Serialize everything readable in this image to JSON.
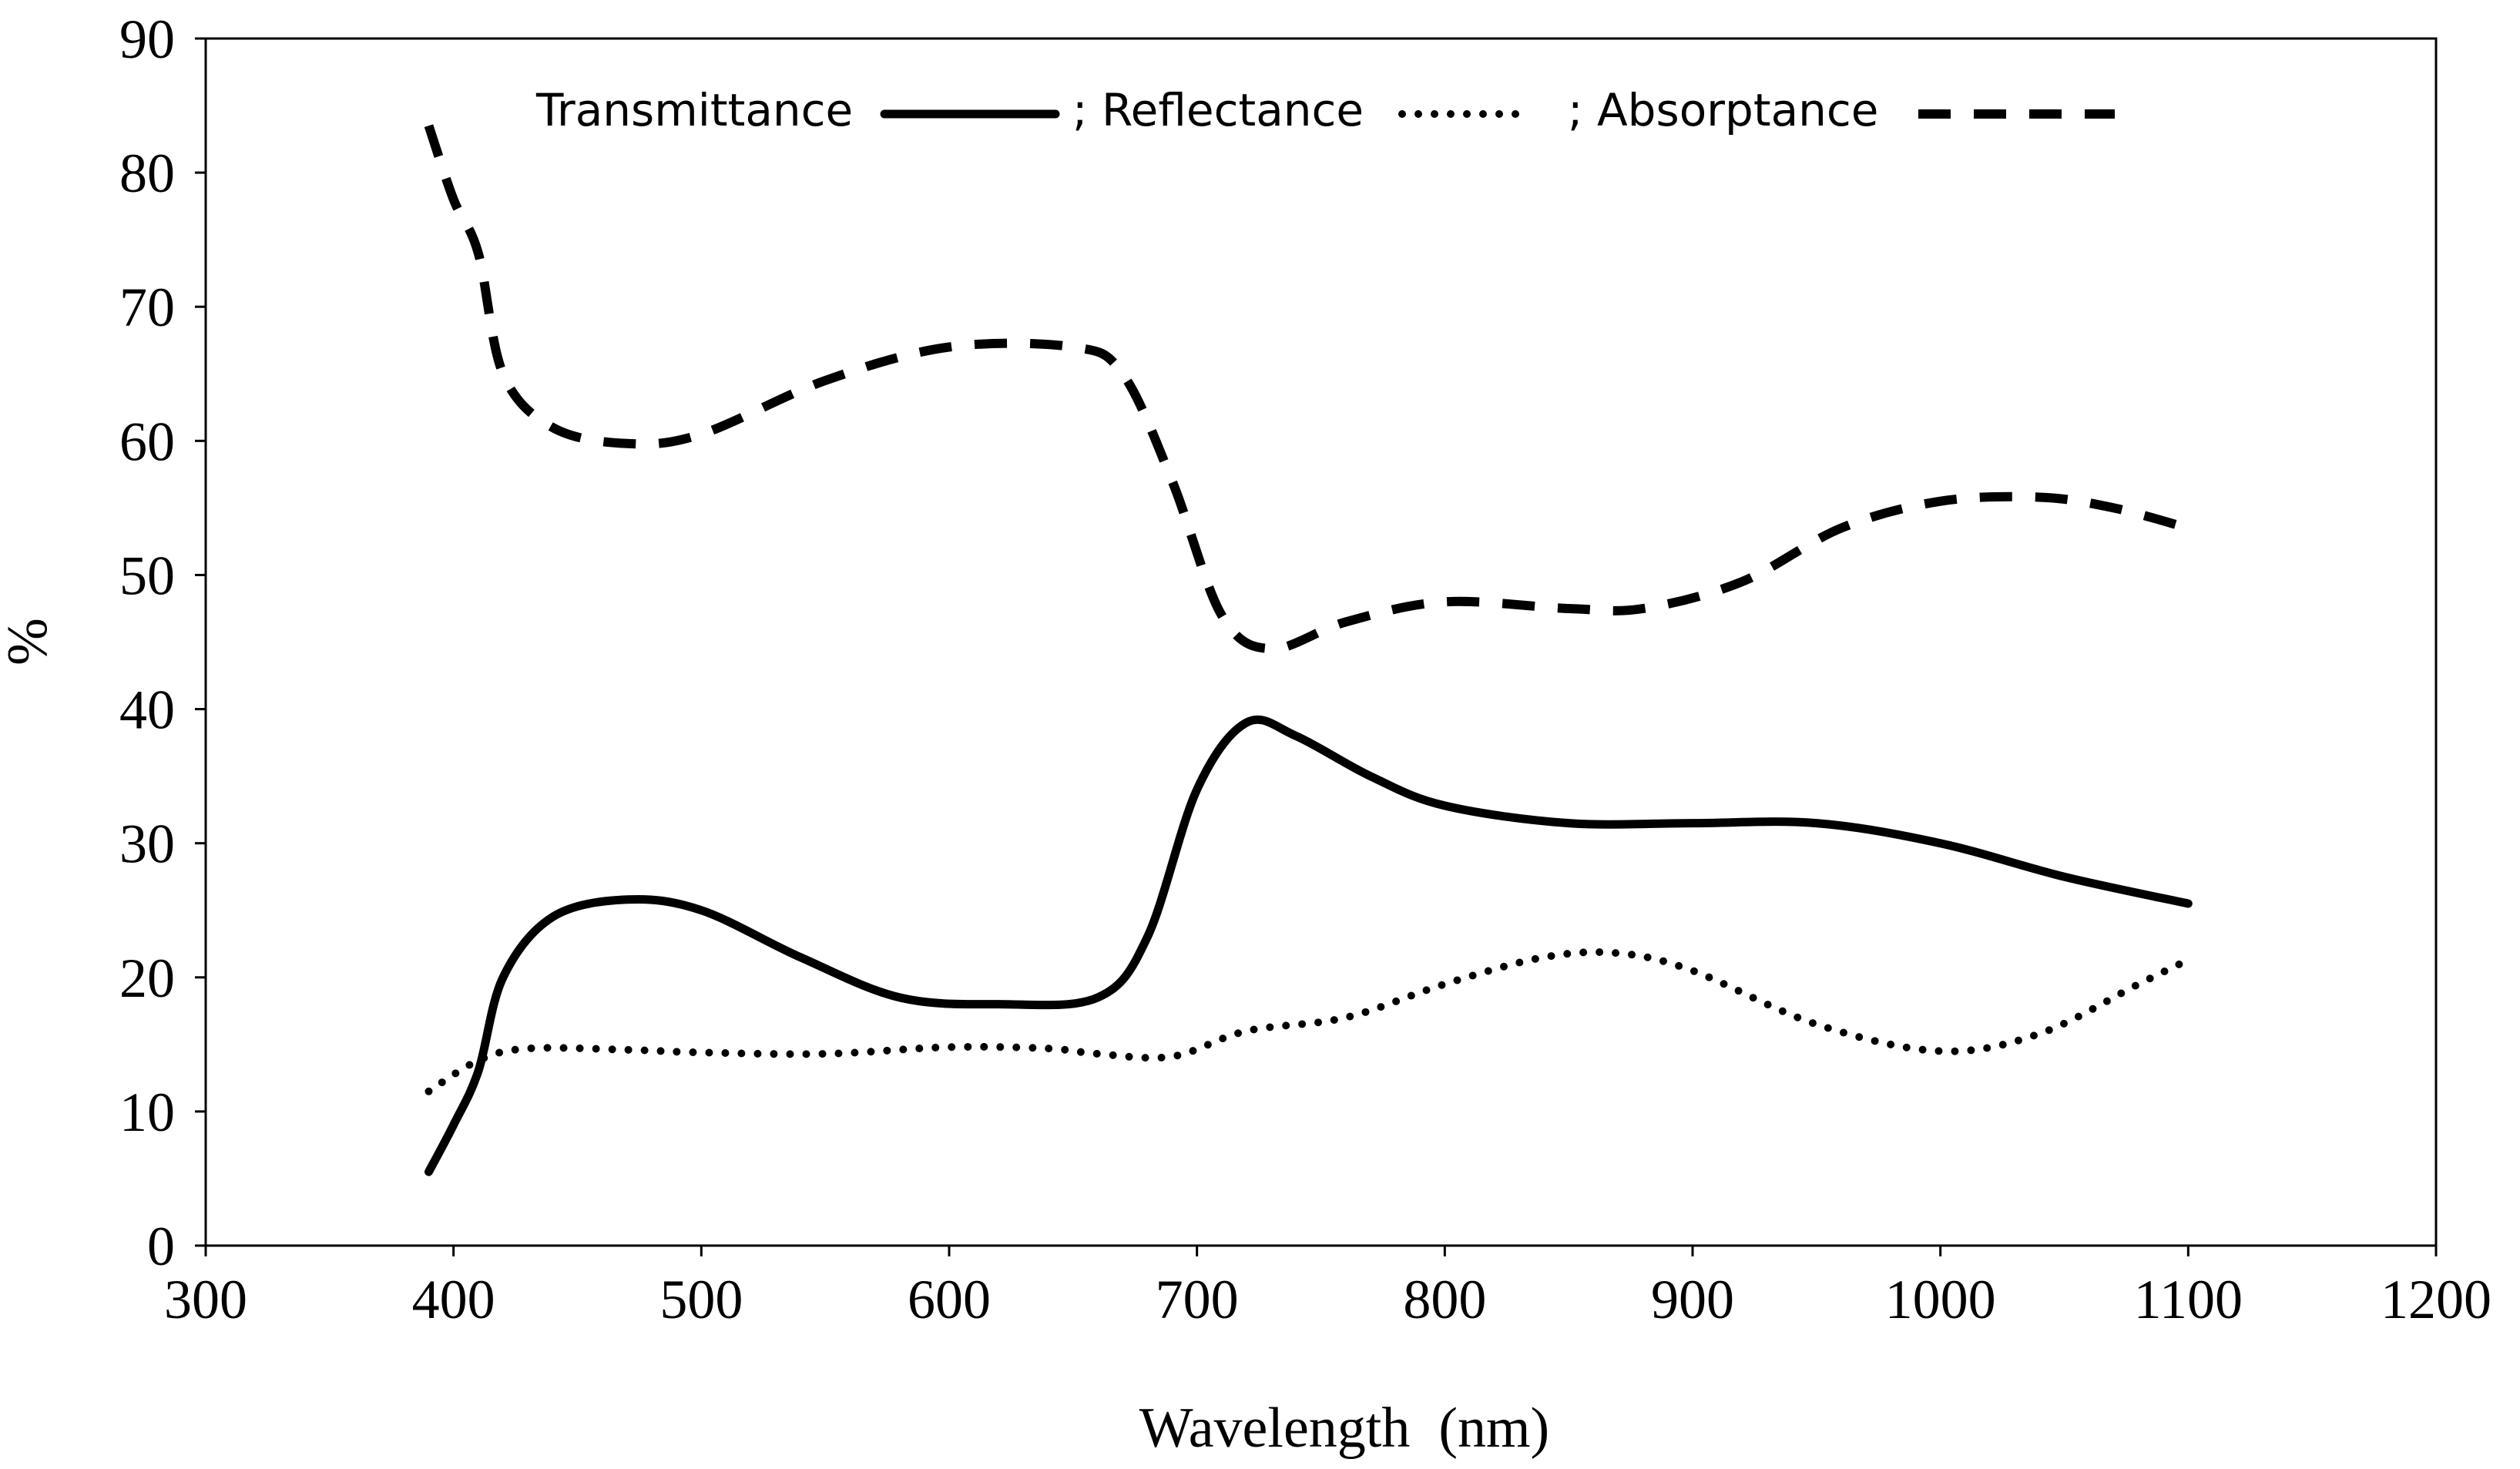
{
  "chart_data": {
    "type": "line",
    "title": "",
    "xlabel": "Wavelength  (nm)",
    "ylabel": "%",
    "xlim": [
      300,
      1200
    ],
    "ylim": [
      0,
      90
    ],
    "xticks": [
      "300",
      "400",
      "500",
      "600",
      "700",
      "800",
      "900",
      "1000",
      "1100",
      "1200"
    ],
    "yticks": [
      "0",
      "10",
      "20",
      "30",
      "40",
      "50",
      "60",
      "70",
      "80",
      "90"
    ],
    "grid": false,
    "legend_position": "top",
    "legend_separator": ";",
    "series": [
      {
        "name": "Transmittance",
        "style": "solid",
        "x": [
          390,
          400,
          410,
          420,
          440,
          470,
          500,
          540,
          580,
          620,
          660,
          680,
          700,
          720,
          740,
          770,
          800,
          850,
          900,
          950,
          1000,
          1050,
          1100
        ],
        "y": [
          5.5,
          9,
          13,
          20,
          24.5,
          25.8,
          25,
          21.5,
          18.5,
          18,
          18.5,
          23,
          34,
          39,
          38,
          35,
          32.8,
          31.5,
          31.5,
          31.5,
          30,
          27.5,
          25.5
        ]
      },
      {
        "name": "Reflectance",
        "style": "dotted",
        "x": [
          390,
          410,
          430,
          470,
          500,
          550,
          600,
          640,
          660,
          690,
          720,
          760,
          800,
          840,
          870,
          900,
          950,
          1000,
          1040,
          1080,
          1100
        ],
        "y": [
          11.5,
          13.8,
          14.7,
          14.6,
          14.4,
          14.3,
          14.8,
          14.7,
          14.3,
          14.1,
          16,
          17,
          19.5,
          21.5,
          21.8,
          20.5,
          16.5,
          14.5,
          15.8,
          19.5,
          21.3
        ]
      },
      {
        "name": "Absorptance",
        "style": "dashed",
        "x": [
          390,
          400,
          410,
          420,
          440,
          470,
          500,
          550,
          600,
          650,
          670,
          690,
          710,
          730,
          760,
          800,
          850,
          880,
          920,
          960,
          1000,
          1040,
          1070,
          1100
        ],
        "y": [
          83.5,
          78,
          74,
          65,
          61,
          59.8,
          60.5,
          64.5,
          67,
          67,
          65,
          57,
          47,
          44.5,
          46.5,
          48,
          47.5,
          47.5,
          49.5,
          53.5,
          55.5,
          55.8,
          55,
          53.5
        ]
      }
    ]
  }
}
